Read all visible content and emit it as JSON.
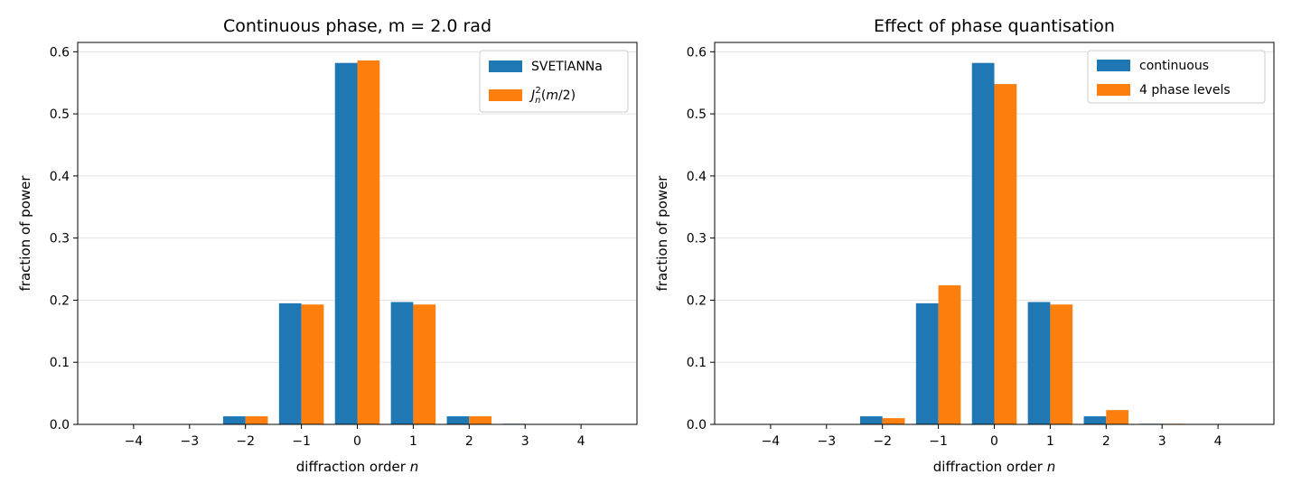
{
  "colors": {
    "blue": "#1f77b4",
    "orange": "#ff7f0e",
    "grid": "#e5e5e5"
  },
  "chart_data": [
    {
      "type": "bar",
      "title": "Continuous phase, m = 2.0 rad",
      "xlabel": "diffraction order",
      "xlabel_var": "n",
      "ylabel": "fraction of power",
      "categories": [
        "−4",
        "−3",
        "−2",
        "−1",
        "0",
        "1",
        "2",
        "3",
        "4"
      ],
      "ylim": [
        0,
        0.615
      ],
      "yticks": [
        "0.0",
        "0.1",
        "0.2",
        "0.3",
        "0.4",
        "0.5",
        "0.6"
      ],
      "grid": "horizontal",
      "legend_position": "top-right",
      "series": [
        {
          "name": "SVETlANNa",
          "color": "#1f77b4",
          "values": [
            0.0,
            0.0,
            0.013,
            0.195,
            0.582,
            0.197,
            0.013,
            0.001,
            0.0
          ]
        },
        {
          "name": "J_n^2(m/2)",
          "label_parts": [
            "J",
            "n",
            "2",
            "(",
            "m",
            "/2)"
          ],
          "color": "#ff7f0e",
          "values": [
            0.0,
            0.0,
            0.013,
            0.193,
            0.586,
            0.193,
            0.013,
            0.0,
            0.0
          ]
        }
      ]
    },
    {
      "type": "bar",
      "title": "Effect of phase quantisation",
      "xlabel": "diffraction order",
      "xlabel_var": "n",
      "ylabel": "fraction of power",
      "categories": [
        "−4",
        "−3",
        "−2",
        "−1",
        "0",
        "1",
        "2",
        "3",
        "4"
      ],
      "ylim": [
        0,
        0.615
      ],
      "yticks": [
        "0.0",
        "0.1",
        "0.2",
        "0.3",
        "0.4",
        "0.5",
        "0.6"
      ],
      "grid": "horizontal",
      "legend_position": "top-right",
      "series": [
        {
          "name": "continuous",
          "color": "#1f77b4",
          "values": [
            0.0,
            0.0,
            0.013,
            0.195,
            0.582,
            0.197,
            0.013,
            0.001,
            0.0
          ]
        },
        {
          "name": "4 phase levels",
          "color": "#ff7f0e",
          "values": [
            0.0,
            0.0,
            0.01,
            0.224,
            0.548,
            0.193,
            0.023,
            0.001,
            0.0
          ]
        }
      ]
    }
  ]
}
